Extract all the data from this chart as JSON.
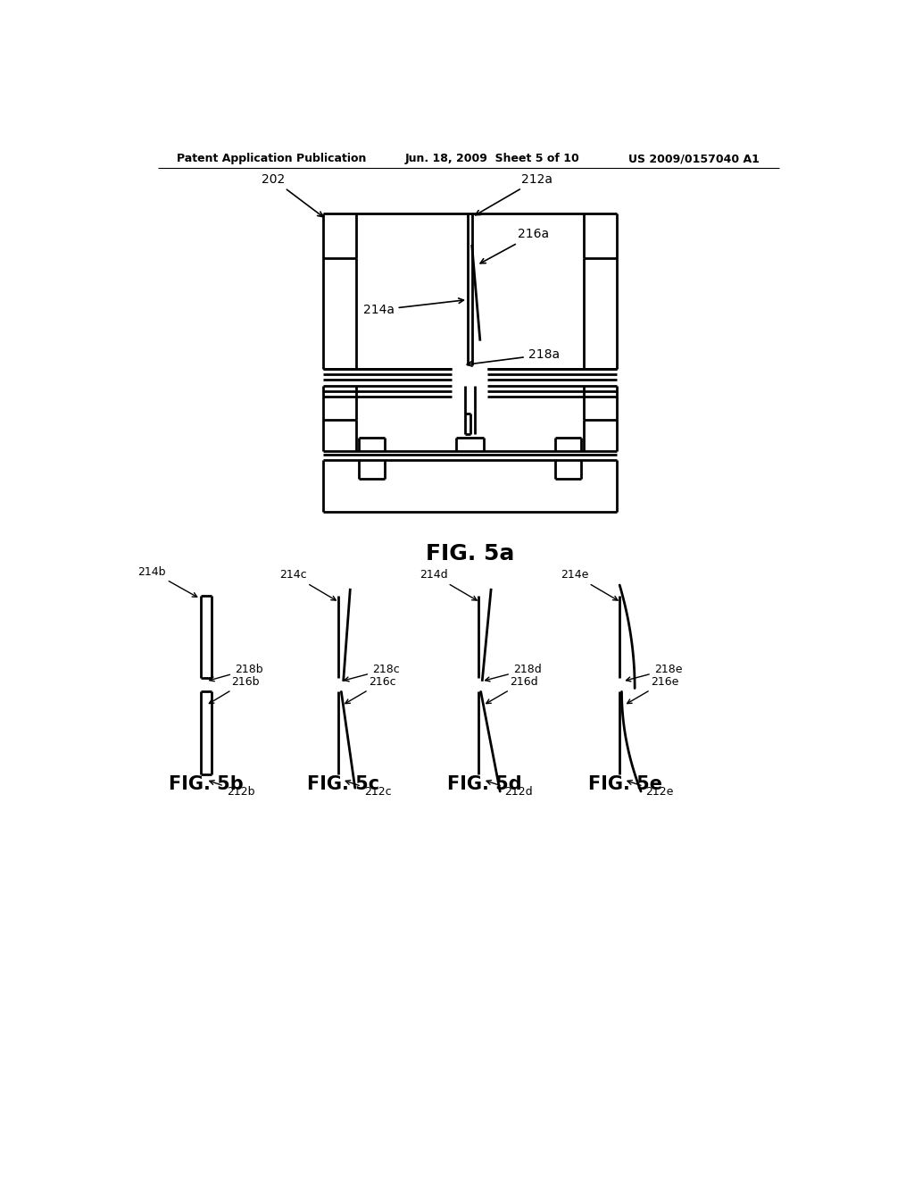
{
  "background_color": "#ffffff",
  "header_left": "Patent Application Publication",
  "header_center": "Jun. 18, 2009  Sheet 5 of 10",
  "header_right": "US 2009/0157040 A1",
  "fig5a_label": "FIG. 5a",
  "fig5b_label": "FIG. 5b",
  "fig5c_label": "FIG. 5c",
  "fig5d_label": "FIG. 5d",
  "fig5e_label": "FIG. 5e",
  "line_color": "#000000",
  "line_width": 2.0
}
